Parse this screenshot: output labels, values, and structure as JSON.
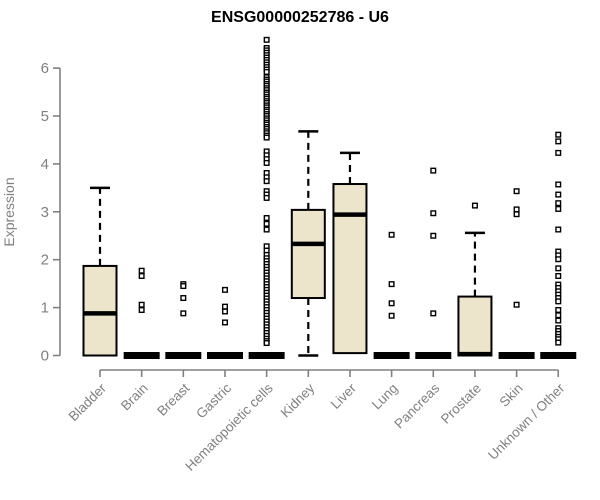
{
  "chart_data": {
    "type": "boxplot",
    "title": "ENSG00000252786 - U6",
    "ylabel": "Expression",
    "xlabel": "",
    "ylim": [
      0,
      6.6
    ],
    "yticks": [
      0,
      1,
      2,
      3,
      4,
      5,
      6
    ],
    "grid": false,
    "legend": "none",
    "categories": [
      "Bladder",
      "Brain",
      "Breast",
      "Gastric",
      "Hematopoietic cells",
      "Kidney",
      "Liver",
      "Lung",
      "Pancreas",
      "Prostate",
      "Skin",
      "Unknown / Other"
    ],
    "series": [
      {
        "category": "Bladder",
        "min": 0,
        "q1": 0,
        "median": 0.88,
        "q3": 1.87,
        "max": 3.5,
        "outliers": []
      },
      {
        "category": "Brain",
        "min": 0,
        "q1": 0,
        "median": 0,
        "q3": 0,
        "max": 0,
        "outliers": [
          1.77,
          1.66,
          1.06,
          0.95
        ]
      },
      {
        "category": "Breast",
        "min": 0,
        "q1": 0,
        "median": 0,
        "q3": 0,
        "max": 0,
        "outliers": [
          1.49,
          1.45,
          1.2,
          0.88
        ]
      },
      {
        "category": "Gastric",
        "min": 0,
        "q1": 0,
        "median": 0,
        "q3": 0,
        "max": 0,
        "outliers": [
          1.37,
          1.02,
          0.92,
          0.69
        ]
      },
      {
        "category": "Hematopoietic cells",
        "min": 0,
        "q1": 0,
        "median": 0,
        "q3": 0,
        "max": 0,
        "outliers": [
          6.59,
          6.42,
          6.37,
          6.32,
          6.27,
          6.22,
          6.17,
          6.12,
          6.07,
          6.02,
          5.97,
          5.92,
          5.81,
          5.76,
          5.72,
          5.67,
          5.63,
          5.58,
          5.54,
          5.49,
          5.45,
          5.4,
          5.36,
          5.31,
          5.27,
          5.22,
          5.18,
          5.13,
          5.09,
          5.04,
          5.0,
          4.95,
          4.91,
          4.86,
          4.82,
          4.77,
          4.73,
          4.68,
          4.64,
          4.59,
          4.55,
          4.26,
          4.18,
          4.1,
          4.02,
          3.81,
          3.72,
          3.64,
          3.43,
          3.36,
          3.29,
          2.87,
          2.75,
          2.63,
          2.28,
          2.19,
          2.1,
          2.03,
          1.97,
          1.91,
          1.85,
          1.79,
          1.73,
          1.67,
          1.61,
          1.55,
          1.49,
          1.43,
          1.37,
          1.31,
          1.25,
          1.19,
          1.13,
          1.07,
          1.01,
          0.95,
          0.89,
          0.83,
          0.77,
          0.71,
          0.65,
          0.59,
          0.53,
          0.47,
          0.41,
          0.35,
          0.3,
          0.26
        ]
      },
      {
        "category": "Kidney",
        "min": 0,
        "q1": 1.2,
        "median": 2.33,
        "q3": 3.04,
        "max": 4.68,
        "outliers": []
      },
      {
        "category": "Liver",
        "min": 0.05,
        "q1": 0.05,
        "median": 2.94,
        "q3": 3.58,
        "max": 4.23,
        "outliers": []
      },
      {
        "category": "Lung",
        "min": 0,
        "q1": 0,
        "median": 0,
        "q3": 0,
        "max": 0,
        "outliers": [
          2.52,
          1.49,
          1.09,
          0.83
        ]
      },
      {
        "category": "Pancreas",
        "min": 0,
        "q1": 0,
        "median": 0,
        "q3": 0,
        "max": 0,
        "outliers": [
          3.86,
          2.97,
          2.5,
          0.88
        ]
      },
      {
        "category": "Prostate",
        "min": 0,
        "q1": 0,
        "median": 0.03,
        "q3": 1.23,
        "max": 2.56,
        "outliers": [
          3.13
        ]
      },
      {
        "category": "Skin",
        "min": 0,
        "q1": 0,
        "median": 0,
        "q3": 0,
        "max": 0,
        "outliers": [
          3.43,
          3.05,
          2.95,
          1.06
        ]
      },
      {
        "category": "Unknown / Other",
        "min": 0,
        "q1": 0,
        "median": 0,
        "q3": 0,
        "max": 0,
        "outliers": [
          4.61,
          4.47,
          4.23,
          3.57,
          3.36,
          3.18,
          3.06,
          2.63,
          2.17,
          2.09,
          2.01,
          1.82,
          1.66,
          1.48,
          1.41,
          1.34,
          1.27,
          1.2,
          1.13,
          0.95,
          0.84,
          0.73,
          0.57,
          0.51,
          0.45,
          0.39,
          0.34,
          0.27
        ]
      }
    ],
    "colors": {
      "box_fill": "#ece5cb",
      "box_stroke": "#000000",
      "median": "#000000",
      "whisker": "#000000",
      "outlier_stroke": "#000000",
      "outlier_fill": "#ffffff",
      "axis": "#808080",
      "tick_label": "#808080",
      "title": "#000000",
      "background": "#ffffff"
    }
  }
}
